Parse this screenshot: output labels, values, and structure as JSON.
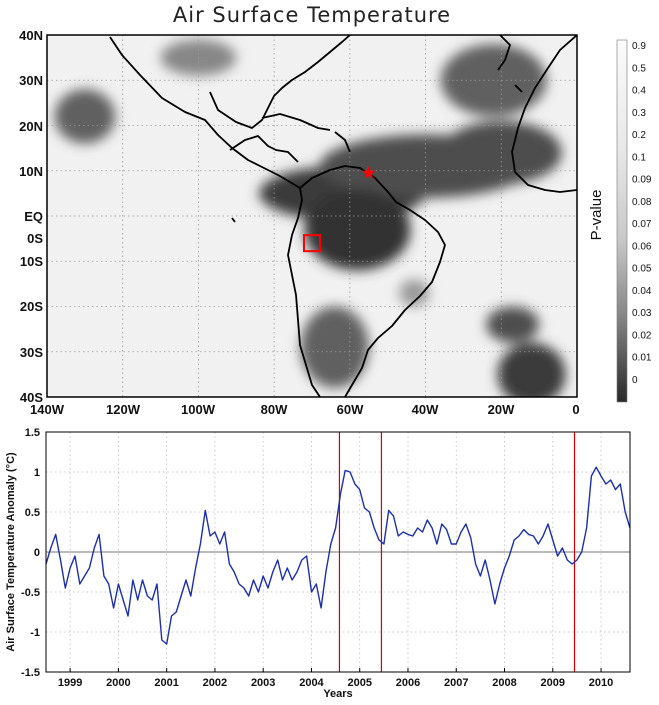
{
  "chart_data": [
    {
      "type": "heatmap",
      "title": "Air Surface Temperature",
      "x_ticks": [
        "140W",
        "120W",
        "100W",
        "80W",
        "60W",
        "40W",
        "20W",
        "0"
      ],
      "y_ticks": [
        "40N",
        "30N",
        "20N",
        "10N",
        "EQ",
        "0S",
        "10S",
        "20S",
        "30S",
        "40S"
      ],
      "y_tick_values": [
        40,
        30,
        20,
        10,
        0,
        -5,
        -10,
        -20,
        -30,
        -40
      ],
      "xlim": [
        -140,
        0
      ],
      "ylim": [
        -40,
        40
      ],
      "colorbar": {
        "label": "P-value",
        "ticks": [
          "0.9",
          "0.5",
          "0.4",
          "0.3",
          "0.2",
          "0.1",
          "0.09",
          "0.08",
          "0.07",
          "0.06",
          "0.05",
          "0.04",
          "0.03",
          "0.02",
          "0.01",
          "0"
        ]
      },
      "markers": [
        {
          "kind": "star",
          "color": "#ff0000",
          "lon": -55,
          "lat": 9.5
        },
        {
          "kind": "square",
          "color": "#ff0000",
          "lon": -70,
          "lat": -6
        }
      ],
      "significant_regions": [
        {
          "lon": -62,
          "lat": 5,
          "rx": 22,
          "ry": 6,
          "p": 0.01
        },
        {
          "lon": -40,
          "lat": 11,
          "rx": 28,
          "ry": 7,
          "p": 0.02
        },
        {
          "lon": -58,
          "lat": -3,
          "rx": 14,
          "ry": 9,
          "p": 0.005
        },
        {
          "lon": -20,
          "lat": 14,
          "rx": 16,
          "ry": 7,
          "p": 0.02
        },
        {
          "lon": -22,
          "lat": 30,
          "rx": 14,
          "ry": 8,
          "p": 0.03
        },
        {
          "lon": -130,
          "lat": 22,
          "rx": 8,
          "ry": 6,
          "p": 0.03
        },
        {
          "lon": -12,
          "lat": -35,
          "rx": 9,
          "ry": 7,
          "p": 0.01
        },
        {
          "lon": -17,
          "lat": -24,
          "rx": 7,
          "ry": 4,
          "p": 0.02
        },
        {
          "lon": -64,
          "lat": -29,
          "rx": 9,
          "ry": 9,
          "p": 0.03
        },
        {
          "lon": -100,
          "lat": 35,
          "rx": 10,
          "ry": 4,
          "p": 0.05
        },
        {
          "lon": -43,
          "lat": -17,
          "rx": 4,
          "ry": 3,
          "p": 0.06
        }
      ]
    },
    {
      "type": "line",
      "xlabel": "Years",
      "ylabel": "Air Surface Temperature Anomaly (°C)",
      "ylim": [
        -1.5,
        1.5
      ],
      "xlim": [
        1998.5,
        2010.6
      ],
      "x_ticks": [
        "1999",
        "2000",
        "2001",
        "2002",
        "2003",
        "2004",
        "2005",
        "2006",
        "2007",
        "2008",
        "2009",
        "2010"
      ],
      "y_ticks": [
        "1.5",
        "1",
        "0.5",
        "0",
        "-0.5",
        "-1",
        "-1.5"
      ],
      "grid": true,
      "vertical_lines": [
        2004.58,
        2005.45,
        2009.45
      ],
      "series": [
        {
          "color": "#1b2fb0",
          "x": [
            1998.5,
            1998.6,
            1998.7,
            1998.8,
            1998.9,
            1999.0,
            1999.1,
            1999.2,
            1999.3,
            1999.4,
            1999.5,
            1999.6,
            1999.7,
            1999.8,
            1999.9,
            2000.0,
            2000.1,
            2000.2,
            2000.3,
            2000.4,
            2000.5,
            2000.6,
            2000.7,
            2000.8,
            2000.9,
            2001.0,
            2001.1,
            2001.2,
            2001.3,
            2001.4,
            2001.5,
            2001.6,
            2001.7,
            2001.8,
            2001.9,
            2002.0,
            2002.1,
            2002.2,
            2002.3,
            2002.4,
            2002.5,
            2002.6,
            2002.7,
            2002.8,
            2002.9,
            2003.0,
            2003.1,
            2003.2,
            2003.3,
            2003.4,
            2003.5,
            2003.6,
            2003.7,
            2003.8,
            2003.9,
            2004.0,
            2004.1,
            2004.2,
            2004.3,
            2004.4,
            2004.5,
            2004.6,
            2004.7,
            2004.8,
            2004.9,
            2005.0,
            2005.1,
            2005.2,
            2005.3,
            2005.4,
            2005.5,
            2005.6,
            2005.7,
            2005.8,
            2005.9,
            2006.0,
            2006.1,
            2006.2,
            2006.3,
            2006.4,
            2006.5,
            2006.6,
            2006.7,
            2006.8,
            2006.9,
            2007.0,
            2007.1,
            2007.2,
            2007.3,
            2007.4,
            2007.5,
            2007.6,
            2007.7,
            2007.8,
            2007.9,
            2008.0,
            2008.1,
            2008.2,
            2008.3,
            2008.4,
            2008.5,
            2008.6,
            2008.7,
            2008.8,
            2008.9,
            2009.0,
            2009.1,
            2009.2,
            2009.3,
            2009.4,
            2009.5,
            2009.6,
            2009.7,
            2009.8,
            2009.9,
            2010.0,
            2010.1,
            2010.2,
            2010.3,
            2010.4,
            2010.5,
            2010.6
          ],
          "y": [
            -0.15,
            0.05,
            0.22,
            -0.1,
            -0.45,
            -0.2,
            -0.05,
            -0.4,
            -0.3,
            -0.2,
            0.05,
            0.22,
            -0.3,
            -0.4,
            -0.7,
            -0.4,
            -0.6,
            -0.8,
            -0.35,
            -0.6,
            -0.35,
            -0.55,
            -0.6,
            -0.4,
            -1.1,
            -1.15,
            -0.8,
            -0.75,
            -0.55,
            -0.35,
            -0.55,
            -0.2,
            0.1,
            0.52,
            0.2,
            0.25,
            0.1,
            0.25,
            -0.15,
            -0.25,
            -0.4,
            -0.45,
            -0.55,
            -0.35,
            -0.5,
            -0.3,
            -0.45,
            -0.25,
            -0.1,
            -0.35,
            -0.2,
            -0.35,
            -0.25,
            -0.1,
            -0.05,
            -0.5,
            -0.4,
            -0.7,
            -0.25,
            0.1,
            0.3,
            0.72,
            1.02,
            1.0,
            0.85,
            0.78,
            0.55,
            0.5,
            0.3,
            0.15,
            0.1,
            0.52,
            0.45,
            0.2,
            0.25,
            0.22,
            0.2,
            0.3,
            0.25,
            0.4,
            0.3,
            0.1,
            0.35,
            0.28,
            0.1,
            0.1,
            0.25,
            0.35,
            0.18,
            -0.15,
            -0.3,
            -0.1,
            -0.35,
            -0.65,
            -0.4,
            -0.2,
            -0.05,
            0.15,
            0.2,
            0.28,
            0.22,
            0.2,
            0.1,
            0.2,
            0.35,
            0.15,
            -0.05,
            0.05,
            -0.1,
            -0.15,
            -0.1,
            0.0,
            0.3,
            0.95,
            1.06,
            0.95,
            0.85,
            0.9,
            0.78,
            0.85,
            0.5,
            0.3
          ]
        }
      ]
    }
  ]
}
